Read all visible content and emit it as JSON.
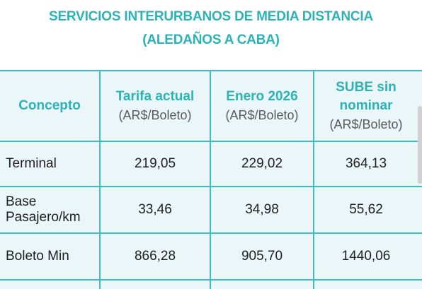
{
  "title": {
    "line1": "SERVICIOS INTERURBANOS DE MEDIA DISTANCIA",
    "line2": "(ALEDAÑOS A CABA)"
  },
  "table": {
    "header": {
      "concept": "Concepto",
      "columns": [
        {
          "title": "Tarifa actual",
          "unit": "(AR$/Boleto)"
        },
        {
          "title": "Enero 2026",
          "unit": "(AR$/Boleto)"
        },
        {
          "title": "SUBE sin nominar",
          "unit": "(AR$/Boleto)"
        }
      ]
    },
    "rows": [
      {
        "concept": "Terminal",
        "values": [
          "219,05",
          "229,02",
          "364,13"
        ]
      },
      {
        "concept": "Base Pasajero/km",
        "values": [
          "33,46",
          "34,98",
          "55,62"
        ]
      },
      {
        "concept": "Boleto Min",
        "values": [
          "866,28",
          "905,70",
          "1440,06"
        ]
      }
    ]
  },
  "colors": {
    "accent": "#2bb3b8",
    "table_bg": "#eaf6f7",
    "grid": "#3dbcc1"
  }
}
